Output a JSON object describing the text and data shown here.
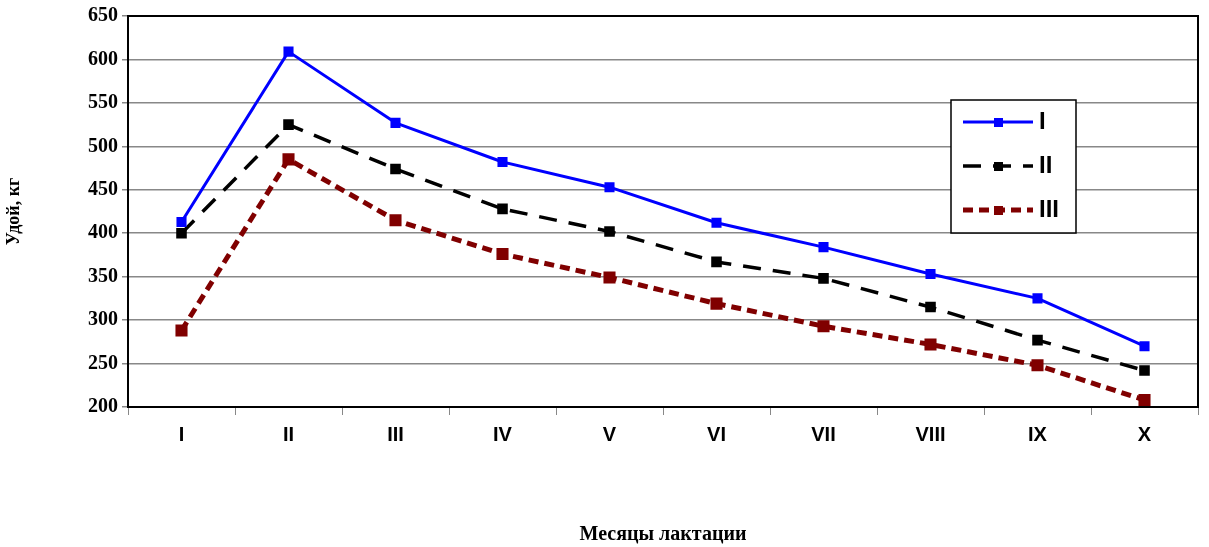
{
  "chart_data": {
    "type": "line",
    "xlabel": "Месяцы лактации",
    "ylabel": "Удой, кг",
    "categories": [
      "I",
      "II",
      "III",
      "IV",
      "V",
      "VI",
      "VII",
      "VIII",
      "IX",
      "X"
    ],
    "series": [
      {
        "name": "I",
        "color": "#0000ff",
        "line_style": "solid",
        "values": [
          413,
          609,
          527,
          482,
          453,
          412,
          384,
          353,
          325,
          270
        ]
      },
      {
        "name": "II",
        "color": "#000000",
        "line_style": "dashed",
        "values": [
          400,
          525,
          474,
          428,
          402,
          367,
          348,
          315,
          277,
          242
        ]
      },
      {
        "name": "III",
        "color": "#800000",
        "line_style": "dotted",
        "values": [
          288,
          485,
          415,
          376,
          349,
          319,
          293,
          272,
          248,
          208
        ]
      }
    ],
    "ylim": [
      200,
      650
    ],
    "yticks": [
      200,
      250,
      300,
      350,
      400,
      450,
      500,
      550,
      600,
      650
    ],
    "grid": "y",
    "legend": "top right",
    "marker": "square"
  }
}
